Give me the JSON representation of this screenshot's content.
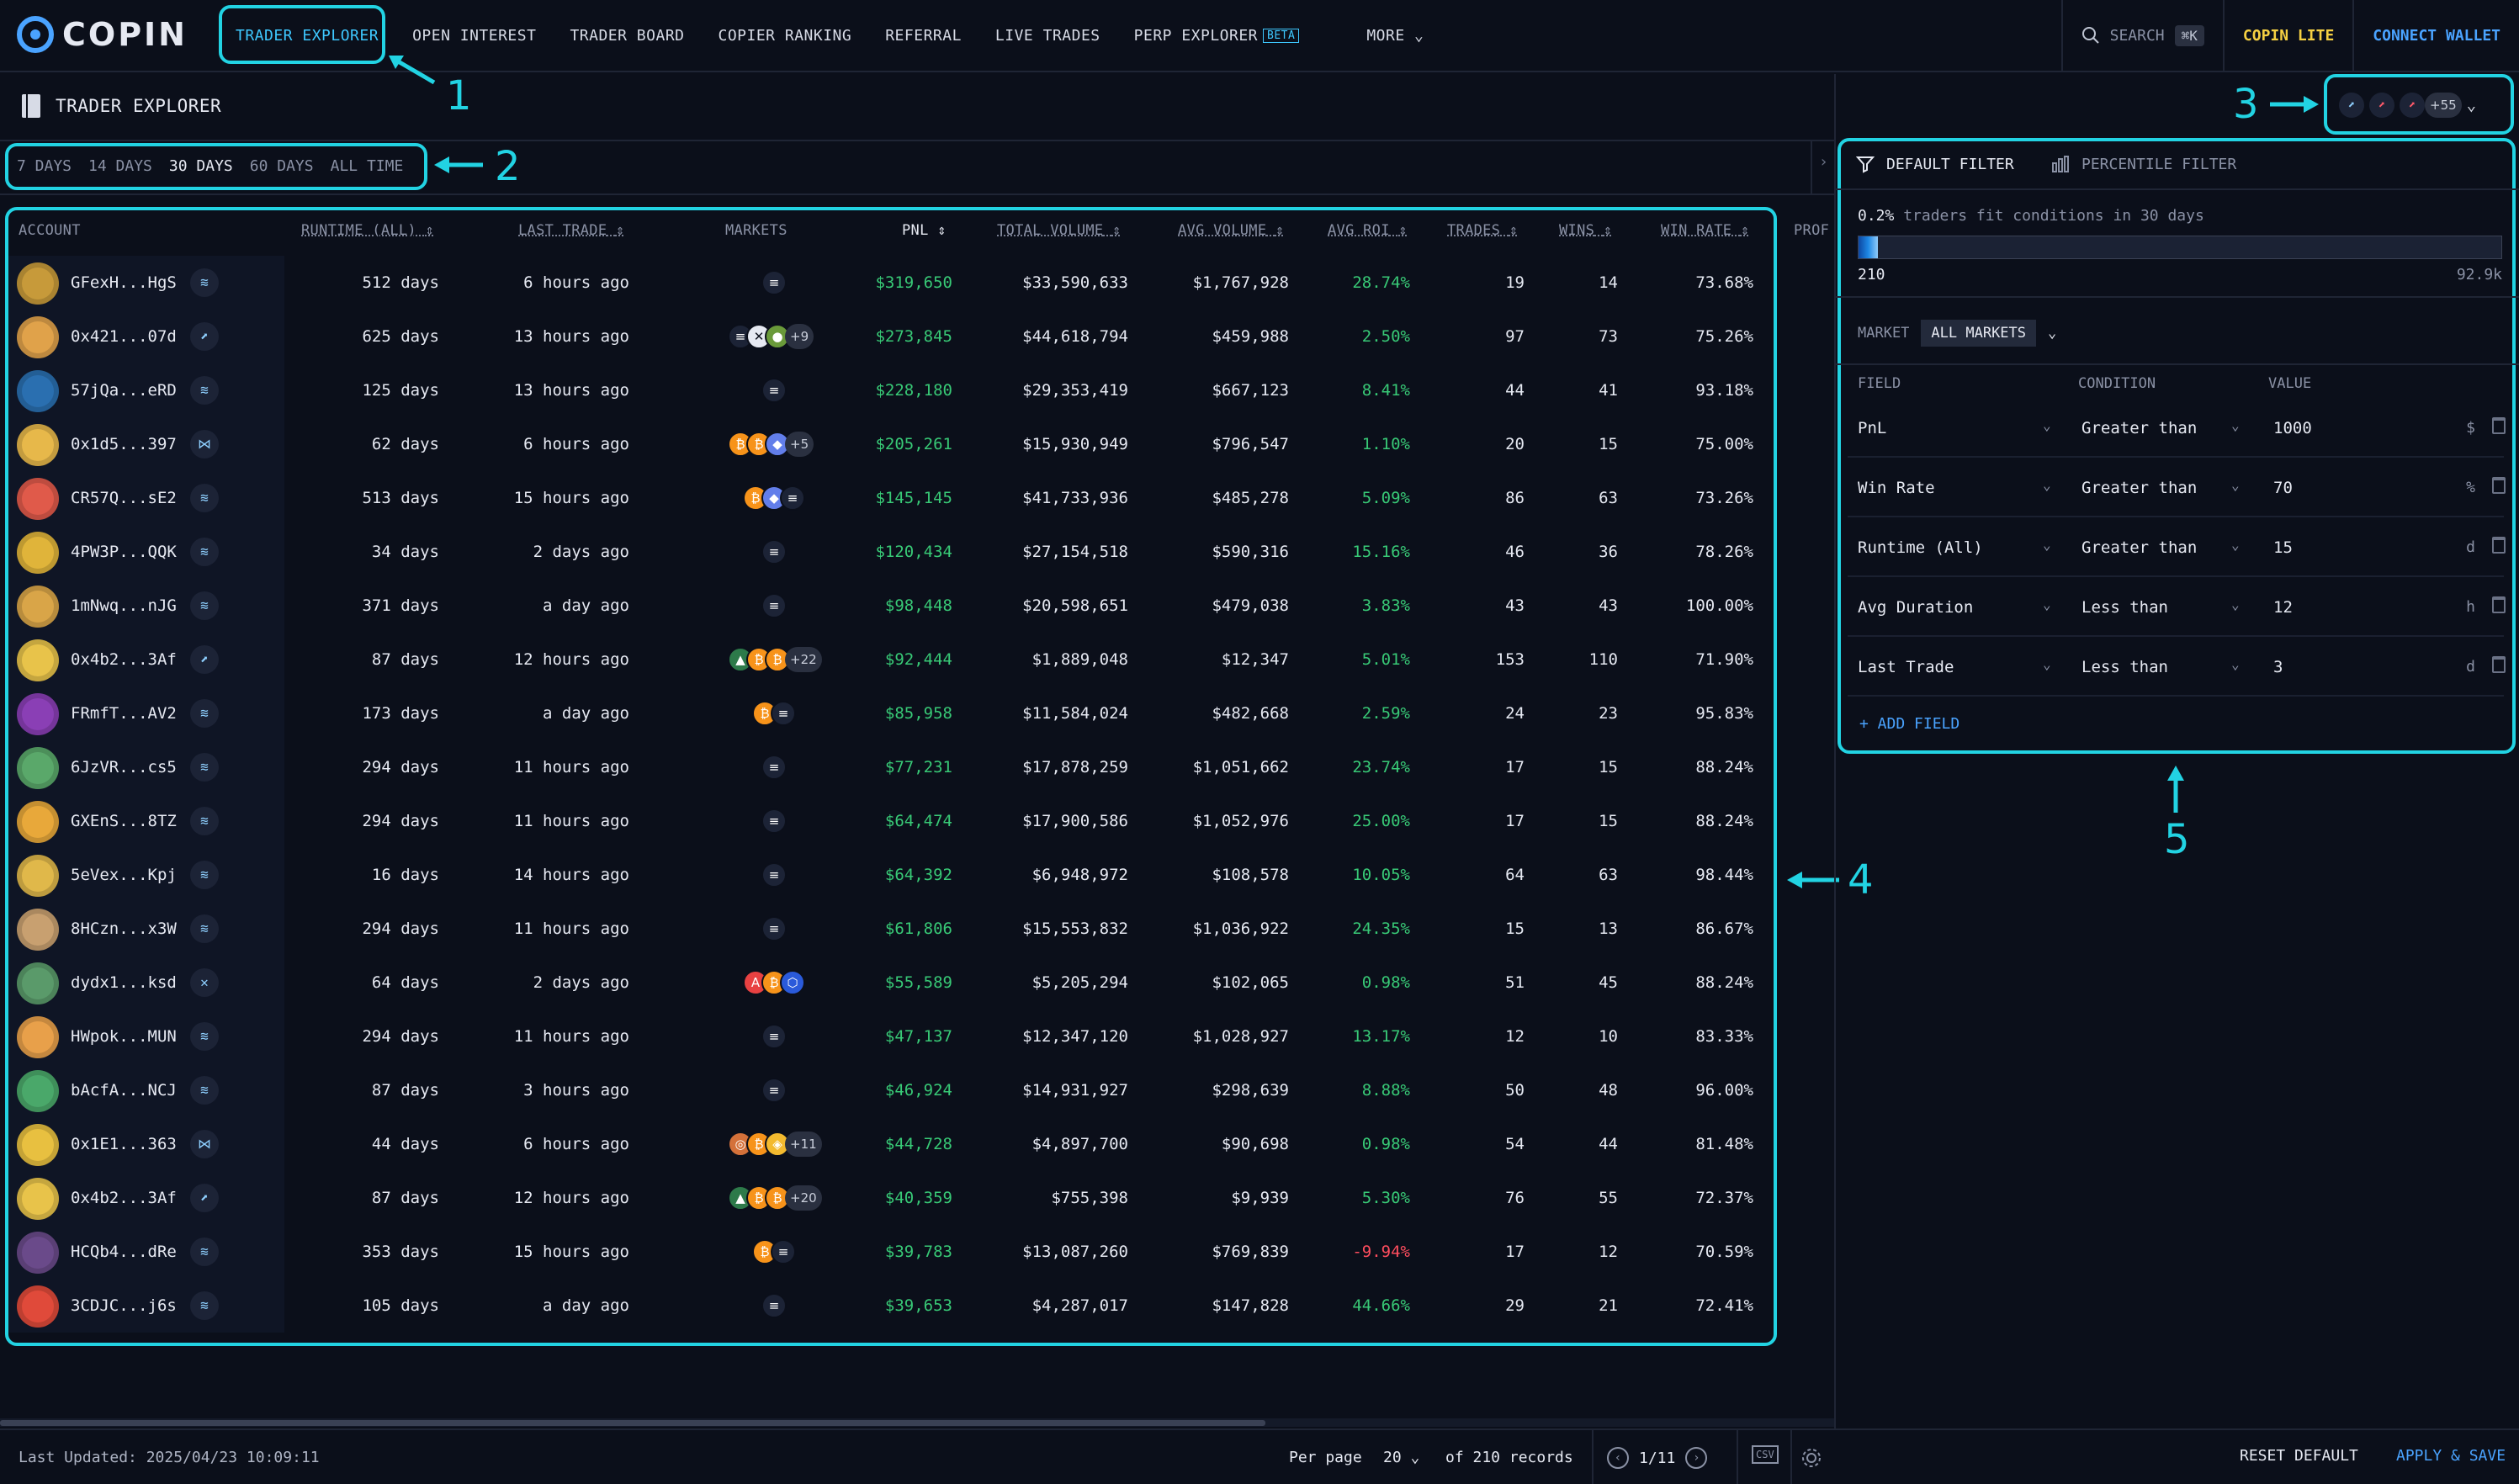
{
  "nav": {
    "logo_text": "COPIN",
    "items": [
      {
        "label": "TRADER EXPLORER",
        "active": true
      },
      {
        "label": "OPEN INTEREST"
      },
      {
        "label": "TRADER BOARD"
      },
      {
        "label": "COPIER RANKING"
      },
      {
        "label": "REFERRAL"
      },
      {
        "label": "LIVE TRADES"
      },
      {
        "label": "PERP EXPLORER",
        "badge": "BETA"
      },
      {
        "label": "MORE"
      }
    ],
    "search_label": "SEARCH",
    "search_shortcut": "⌘K",
    "lite_label": "COPIN LITE",
    "connect_label": "CONNECT WALLET"
  },
  "header": {
    "title": "TRADER EXPLORER",
    "protocol_more": "+55"
  },
  "annotations": [
    "1",
    "2",
    "3",
    "4",
    "5"
  ],
  "periods": [
    {
      "label": "7 DAYS"
    },
    {
      "label": "14 DAYS"
    },
    {
      "label": "30 DAYS",
      "active": true
    },
    {
      "label": "60 DAYS"
    },
    {
      "label": "ALL TIME"
    }
  ],
  "table": {
    "columns": [
      "ACCOUNT",
      "RUNTIME (ALL)",
      "LAST TRADE",
      "MARKETS",
      "PNL",
      "TOTAL VOLUME",
      "AVG VOLUME",
      "AVG ROI",
      "TRADES",
      "WINS",
      "WIN RATE",
      "PROF"
    ],
    "rows": [
      {
        "account": "GFexH...HgS",
        "runtime": "512 days",
        "last": "6 hours ago",
        "markets": [
          "SOL"
        ],
        "more": "",
        "pnl": "$319,650",
        "vol": "$33,590,633",
        "avg": "$1,767,928",
        "roi": "28.74%",
        "roi_neg": false,
        "trades": "19",
        "wins": "14",
        "rate": "73.68%",
        "avatar": "#c79a3a",
        "badge": "drift"
      },
      {
        "account": "0x421...07d",
        "runtime": "625 days",
        "last": "13 hours ago",
        "markets": [
          "SOL",
          "XRP",
          "BONK"
        ],
        "more": "+9",
        "pnl": "$273,845",
        "vol": "$44,618,794",
        "avg": "$459,988",
        "roi": "2.50%",
        "roi_neg": false,
        "trades": "97",
        "wins": "73",
        "rate": "75.26%",
        "avatar": "#e0a24a",
        "badge": "gmx"
      },
      {
        "account": "57jQa...eRD",
        "runtime": "125 days",
        "last": "13 hours ago",
        "markets": [
          "SOL"
        ],
        "more": "",
        "pnl": "$228,180",
        "vol": "$29,353,419",
        "avg": "$667,123",
        "roi": "8.41%",
        "roi_neg": false,
        "trades": "44",
        "wins": "41",
        "rate": "93.18%",
        "avatar": "#2a6fb0",
        "badge": "drift"
      },
      {
        "account": "0x1d5...397",
        "runtime": "62 days",
        "last": "6 hours ago",
        "markets": [
          "BTC",
          "BTC",
          "ETH"
        ],
        "more": "+5",
        "pnl": "$205,261",
        "vol": "$15,930,949",
        "avg": "$796,547",
        "roi": "1.10%",
        "roi_neg": false,
        "trades": "20",
        "wins": "15",
        "rate": "75.00%",
        "avatar": "#e7b84a",
        "badge": "hl"
      },
      {
        "account": "CR57Q...sE2",
        "runtime": "513 days",
        "last": "15 hours ago",
        "markets": [
          "BTC",
          "ETH",
          "SOL"
        ],
        "more": "",
        "pnl": "$145,145",
        "vol": "$41,733,936",
        "avg": "$485,278",
        "roi": "5.09%",
        "roi_neg": false,
        "trades": "86",
        "wins": "63",
        "rate": "73.26%",
        "avatar": "#e05a4a",
        "badge": "drift"
      },
      {
        "account": "4PW3P...QQK",
        "runtime": "34 days",
        "last": "2 days ago",
        "markets": [
          "SOL"
        ],
        "more": "",
        "pnl": "$120,434",
        "vol": "$27,154,518",
        "avg": "$590,316",
        "roi": "15.16%",
        "roi_neg": false,
        "trades": "46",
        "wins": "36",
        "rate": "78.26%",
        "avatar": "#e0b43a",
        "badge": "drift"
      },
      {
        "account": "1mNwq...nJG",
        "runtime": "371 days",
        "last": "a day ago",
        "markets": [
          "SOL"
        ],
        "more": "",
        "pnl": "$98,448",
        "vol": "$20,598,651",
        "avg": "$479,038",
        "roi": "3.83%",
        "roi_neg": false,
        "trades": "43",
        "wins": "43",
        "rate": "100.00%",
        "avatar": "#d9a548",
        "badge": "drift"
      },
      {
        "account": "0x4b2...3Af",
        "runtime": "87 days",
        "last": "12 hours ago",
        "markets": [
          "ARB",
          "BTC",
          "BTC"
        ],
        "more": "+22",
        "pnl": "$92,444",
        "vol": "$1,889,048",
        "avg": "$12,347",
        "roi": "5.01%",
        "roi_neg": false,
        "trades": "153",
        "wins": "110",
        "rate": "71.90%",
        "avatar": "#e8c34a",
        "badge": "gmx"
      },
      {
        "account": "FRmfT...AV2",
        "runtime": "173 days",
        "last": "a day ago",
        "markets": [
          "BTC",
          "SOL"
        ],
        "more": "",
        "pnl": "$85,958",
        "vol": "$11,584,024",
        "avg": "$482,668",
        "roi": "2.59%",
        "roi_neg": false,
        "trades": "24",
        "wins": "23",
        "rate": "95.83%",
        "avatar": "#8a3fb5",
        "badge": "drift"
      },
      {
        "account": "6JzVR...cs5",
        "runtime": "294 days",
        "last": "11 hours ago",
        "markets": [
          "SOL"
        ],
        "more": "",
        "pnl": "$77,231",
        "vol": "$17,878,259",
        "avg": "$1,051,662",
        "roi": "23.74%",
        "roi_neg": false,
        "trades": "17",
        "wins": "15",
        "rate": "88.24%",
        "avatar": "#5aa86a",
        "badge": "drift"
      },
      {
        "account": "GXEnS...8TZ",
        "runtime": "294 days",
        "last": "11 hours ago",
        "markets": [
          "SOL"
        ],
        "more": "",
        "pnl": "$64,474",
        "vol": "$17,900,586",
        "avg": "$1,052,976",
        "roi": "25.00%",
        "roi_neg": false,
        "trades": "17",
        "wins": "15",
        "rate": "88.24%",
        "avatar": "#e8a83a",
        "badge": "drift"
      },
      {
        "account": "5eVex...Kpj",
        "runtime": "16 days",
        "last": "14 hours ago",
        "markets": [
          "SOL"
        ],
        "more": "",
        "pnl": "$64,392",
        "vol": "$6,948,972",
        "avg": "$108,578",
        "roi": "10.05%",
        "roi_neg": false,
        "trades": "64",
        "wins": "63",
        "rate": "98.44%",
        "avatar": "#e0b84a",
        "badge": "drift"
      },
      {
        "account": "8HCzn...x3W",
        "runtime": "294 days",
        "last": "11 hours ago",
        "markets": [
          "SOL"
        ],
        "more": "",
        "pnl": "$61,806",
        "vol": "$15,553,832",
        "avg": "$1,036,922",
        "roi": "24.35%",
        "roi_neg": false,
        "trades": "15",
        "wins": "13",
        "rate": "86.67%",
        "avatar": "#c8a070",
        "badge": "drift"
      },
      {
        "account": "dydx1...ksd",
        "runtime": "64 days",
        "last": "2 days ago",
        "markets": [
          "AVAX",
          "BTC",
          "LINK"
        ],
        "more": "",
        "pnl": "$55,589",
        "vol": "$5,205,294",
        "avg": "$102,065",
        "roi": "0.98%",
        "roi_neg": false,
        "trades": "51",
        "wins": "45",
        "rate": "88.24%",
        "avatar": "#5a9a6a",
        "badge": "dydx"
      },
      {
        "account": "HWpok...MUN",
        "runtime": "294 days",
        "last": "11 hours ago",
        "markets": [
          "SOL"
        ],
        "more": "",
        "pnl": "$47,137",
        "vol": "$12,347,120",
        "avg": "$1,028,927",
        "roi": "13.17%",
        "roi_neg": false,
        "trades": "12",
        "wins": "10",
        "rate": "83.33%",
        "avatar": "#e8a04a",
        "badge": "drift"
      },
      {
        "account": "bAcfA...NCJ",
        "runtime": "87 days",
        "last": "3 hours ago",
        "markets": [
          "SOL"
        ],
        "more": "",
        "pnl": "$46,924",
        "vol": "$14,931,927",
        "avg": "$298,639",
        "roi": "8.88%",
        "roi_neg": false,
        "trades": "50",
        "wins": "48",
        "rate": "96.00%",
        "avatar": "#4aa86a",
        "badge": "drift"
      },
      {
        "account": "0x1E1...363",
        "runtime": "44 days",
        "last": "6 hours ago",
        "markets": [
          "ORDI",
          "BTC",
          "BNB"
        ],
        "more": "+11",
        "pnl": "$44,728",
        "vol": "$4,897,700",
        "avg": "$90,698",
        "roi": "0.98%",
        "roi_neg": false,
        "trades": "54",
        "wins": "44",
        "rate": "81.48%",
        "avatar": "#e8c040",
        "badge": "hl"
      },
      {
        "account": "0x4b2...3Af",
        "runtime": "87 days",
        "last": "12 hours ago",
        "markets": [
          "ARB",
          "BTC",
          "BTC"
        ],
        "more": "+20",
        "pnl": "$40,359",
        "vol": "$755,398",
        "avg": "$9,939",
        "roi": "5.30%",
        "roi_neg": false,
        "trades": "76",
        "wins": "55",
        "rate": "72.37%",
        "avatar": "#e8c34a",
        "badge": "gmx2"
      },
      {
        "account": "HCQb4...dRe",
        "runtime": "353 days",
        "last": "15 hours ago",
        "markets": [
          "BTC",
          "SOL"
        ],
        "more": "",
        "pnl": "$39,783",
        "vol": "$13,087,260",
        "avg": "$769,839",
        "roi": "-9.94%",
        "roi_neg": true,
        "trades": "17",
        "wins": "12",
        "rate": "70.59%",
        "avatar": "#6a4a8a",
        "badge": "drift"
      },
      {
        "account": "3CDJC...j6s",
        "runtime": "105 days",
        "last": "a day ago",
        "markets": [
          "SOL"
        ],
        "more": "",
        "pnl": "$39,653",
        "vol": "$4,287,017",
        "avg": "$147,828",
        "roi": "44.66%",
        "roi_neg": false,
        "trades": "29",
        "wins": "21",
        "rate": "72.41%",
        "avatar": "#e04a3a",
        "badge": "drift"
      }
    ]
  },
  "filter": {
    "tab_default": "DEFAULT FILTER",
    "tab_percentile": "PERCENTILE FILTER",
    "fit_pct": "0.2%",
    "fit_text": "traders fit conditions in 30 days",
    "fit_fraction": 0.03,
    "range_min": "210",
    "range_max": "92.9k",
    "market_label": "MARKET",
    "market_value": "ALL MARKETS",
    "col_field": "FIELD",
    "col_condition": "CONDITION",
    "col_value": "VALUE",
    "rows": [
      {
        "field": "PnL",
        "condition": "Greater than",
        "value": "1000",
        "unit": "$"
      },
      {
        "field": "Win Rate",
        "condition": "Greater than",
        "value": "70",
        "unit": "%"
      },
      {
        "field": "Runtime (All)",
        "condition": "Greater than",
        "value": "15",
        "unit": "d"
      },
      {
        "field": "Avg Duration",
        "condition": "Less than",
        "value": "12",
        "unit": "h"
      },
      {
        "field": "Last Trade",
        "condition": "Less than",
        "value": "3",
        "unit": "d"
      }
    ],
    "add_field": "+ ADD FIELD",
    "reset": "RESET DEFAULT",
    "apply": "APPLY & SAVE"
  },
  "footer": {
    "updated": "Last Updated: 2025/04/23 10:09:11",
    "per_page_label": "Per page",
    "per_page": "20",
    "records": "of 210 records",
    "page": "1/11",
    "csv": "CSV"
  },
  "colors": {
    "accent": "#22d3e3",
    "green": "#38c976",
    "red": "#ff4d5e",
    "blue": "#4aa3ff"
  }
}
